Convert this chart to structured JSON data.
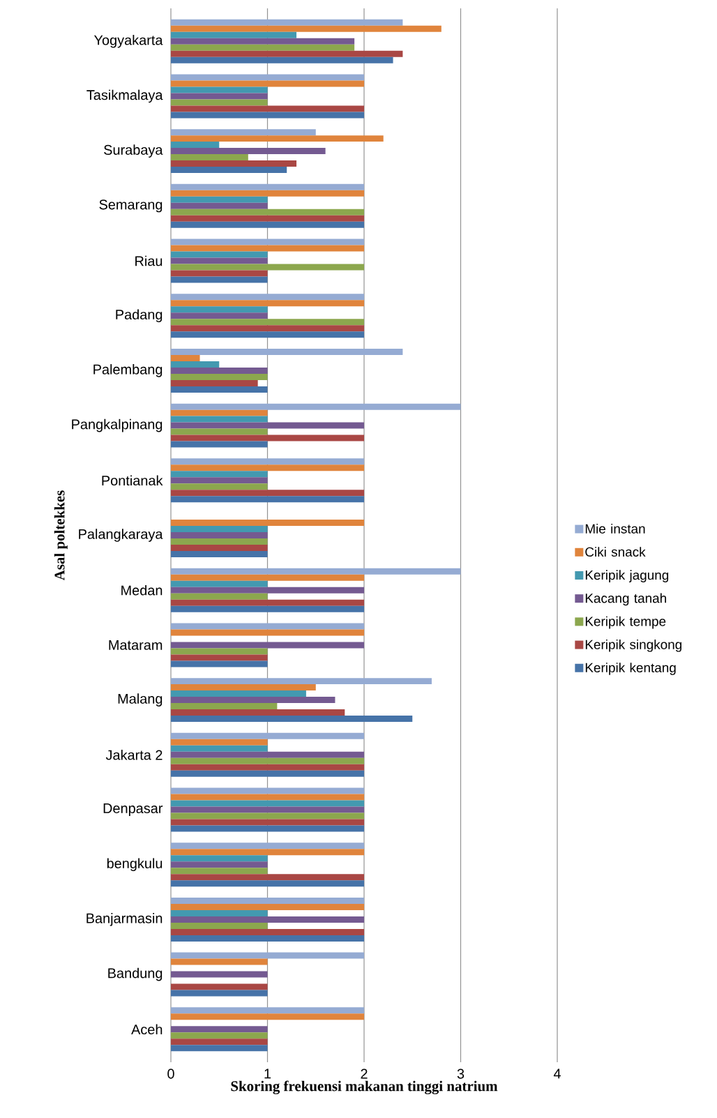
{
  "chart_data": {
    "type": "bar",
    "orientation": "horizontal",
    "xlabel": "Skoring frekuensi makanan tinggi  natrium",
    "ylabel": "Asal poltekkes",
    "categories": [
      "Yogyakarta",
      "Tasikmalaya",
      "Surabaya",
      "Semarang",
      "Riau",
      "Padang",
      "Palembang",
      "Pangkalpinang",
      "Pontianak",
      "Palangkaraya",
      "Medan",
      "Mataram",
      "Malang",
      "Jakarta 2",
      "Denpasar",
      "bengkulu",
      "Banjarmasin",
      "Bandung",
      "Aceh"
    ],
    "series": [
      {
        "name": "Mie instan",
        "color": "#95abd3",
        "values": [
          2.4,
          2,
          1.5,
          2,
          2,
          2,
          2.4,
          3,
          2,
          null,
          3,
          2,
          2.7,
          2,
          2,
          2,
          2,
          2,
          2
        ]
      },
      {
        "name": "Ciki snack",
        "color": "#e0843c",
        "values": [
          2.8,
          2,
          2.2,
          2,
          2,
          2,
          0.3,
          1,
          2,
          2,
          2,
          2,
          1.5,
          1,
          2,
          2,
          2,
          1,
          2
        ]
      },
      {
        "name": "Keripik jagung",
        "color": "#4399b0",
        "values": [
          1.3,
          1,
          0.5,
          1,
          1,
          1,
          0.5,
          1,
          1,
          1,
          1,
          null,
          1.4,
          1,
          2,
          1,
          1,
          null,
          null
        ]
      },
      {
        "name": "Kacang tanah",
        "color": "#745a91",
        "values": [
          1.9,
          1,
          1.6,
          1,
          1,
          1,
          1,
          2,
          1,
          1,
          2,
          2,
          1.7,
          2,
          2,
          1,
          2,
          1,
          1
        ]
      },
      {
        "name": "Keripik tempe",
        "color": "#8ca74e",
        "values": [
          1.9,
          1,
          0.8,
          2,
          2,
          2,
          1,
          1,
          1,
          1,
          1,
          1,
          1.1,
          2,
          2,
          1,
          1,
          null,
          1
        ]
      },
      {
        "name": "Keripik singkong",
        "color": "#a94744",
        "values": [
          2.4,
          2,
          1.3,
          2,
          1,
          2,
          0.9,
          2,
          2,
          1,
          2,
          1,
          1.8,
          2,
          2,
          2,
          2,
          1,
          1
        ]
      },
      {
        "name": "Keripik kentang",
        "color": "#4673a8",
        "values": [
          2.3,
          2,
          1.2,
          2,
          1,
          2,
          1,
          1,
          2,
          1,
          2,
          1,
          2.5,
          2,
          2,
          2,
          2,
          1,
          1
        ]
      }
    ],
    "xlim": [
      0,
      4
    ],
    "xticks": [
      0,
      1,
      2,
      3,
      4
    ],
    "grid": "x",
    "legend": "right"
  }
}
